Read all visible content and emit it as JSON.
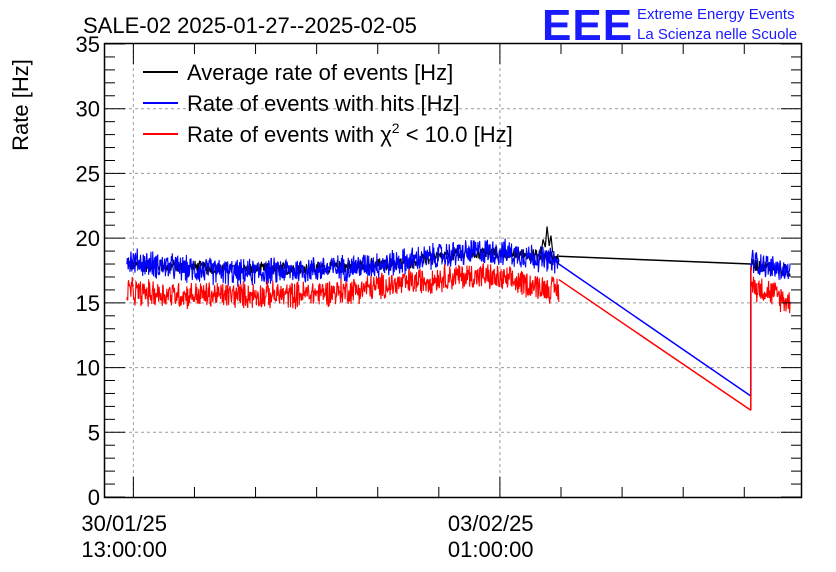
{
  "chart_data": {
    "type": "line",
    "title": "SALE-02 2025-01-27--2025-02-05",
    "xlabel": "",
    "ylabel": "Rate [Hz]",
    "ylim": [
      0,
      35
    ],
    "yticks": [
      0,
      5,
      10,
      15,
      20,
      25,
      30,
      35
    ],
    "x_unit": "hours since 30/01/25 13:00:00",
    "xlim": [
      -6.5,
      153
    ],
    "xticks": [
      {
        "x": 0,
        "date": "30/01/25",
        "time": "13:00:00"
      },
      {
        "x": 84,
        "date": "03/02/25",
        "time": "01:00:00"
      }
    ],
    "grid": true,
    "legend_position": "top-left",
    "series": [
      {
        "name": "Average rate of events [Hz]",
        "color": "#000000",
        "noisy_segments": [
          {
            "x": [
              -1.5,
              0,
              12,
              24,
              36,
              48,
              60,
              72,
              80,
              84,
              90,
              95,
              97.5
            ],
            "y": [
              18.0,
              17.9,
              17.8,
              17.6,
              17.6,
              17.8,
              18.0,
              18.6,
              18.9,
              18.8,
              18.7,
              18.5,
              18.4
            ],
            "amplitude": 0.6
          },
          {
            "x": [
              141.5,
              145,
              150.5
            ],
            "y": [
              18.0,
              17.8,
              17.4
            ],
            "amplitude": 0.6
          }
        ],
        "gaps": [
          {
            "x": [
              97.5,
              141.5
            ],
            "y": [
              18.6,
              18.0
            ]
          }
        ],
        "spikes": [
          {
            "x": 95,
            "y": 20.9
          }
        ]
      },
      {
        "name": "Rate of events with hits [Hz]",
        "color": "#0000ff",
        "noisy_segments": [
          {
            "x": [
              -1.5,
              0,
              12,
              24,
              36,
              48,
              60,
              72,
              80,
              84,
              90,
              95,
              97.5
            ],
            "y": [
              18.4,
              18.2,
              17.6,
              17.3,
              17.5,
              17.7,
              18.1,
              18.7,
              19.0,
              18.9,
              18.7,
              18.3,
              18.0
            ],
            "amplitude": 1.2
          },
          {
            "x": [
              141.5,
              145,
              150.5
            ],
            "y": [
              18.3,
              17.9,
              17.3
            ],
            "amplitude": 1.1
          }
        ],
        "gaps": [
          {
            "x": [
              97.5,
              141.5
            ],
            "y": [
              18.0,
              7.8
            ]
          }
        ]
      },
      {
        "name": "Rate of events with χ² < 10.0 [Hz]",
        "legend_prefix": "Rate of events with ",
        "legend_symbol": "χ",
        "legend_superscript": "2",
        "legend_suffix": " < 10.0 [Hz]",
        "color": "#ff0000",
        "noisy_segments": [
          {
            "x": [
              -1.5,
              0,
              12,
              24,
              36,
              48,
              60,
              72,
              80,
              84,
              90,
              95,
              97.5
            ],
            "y": [
              16.0,
              15.8,
              15.6,
              15.6,
              15.6,
              15.9,
              16.4,
              17.0,
              17.1,
              16.8,
              16.5,
              16.1,
              16.0
            ],
            "amplitude": 1.2
          },
          {
            "x": [
              141.5,
              145,
              150.5
            ],
            "y": [
              16.3,
              16.0,
              15.0
            ],
            "amplitude": 1.2
          }
        ],
        "gaps": [
          {
            "x": [
              97.5,
              141.5
            ],
            "y": [
              16.8,
              6.7
            ]
          }
        ]
      }
    ]
  },
  "logo": {
    "letters": "EEE",
    "line1": "Extreme Energy Events",
    "line2": "La Scienza nelle Scuole"
  }
}
